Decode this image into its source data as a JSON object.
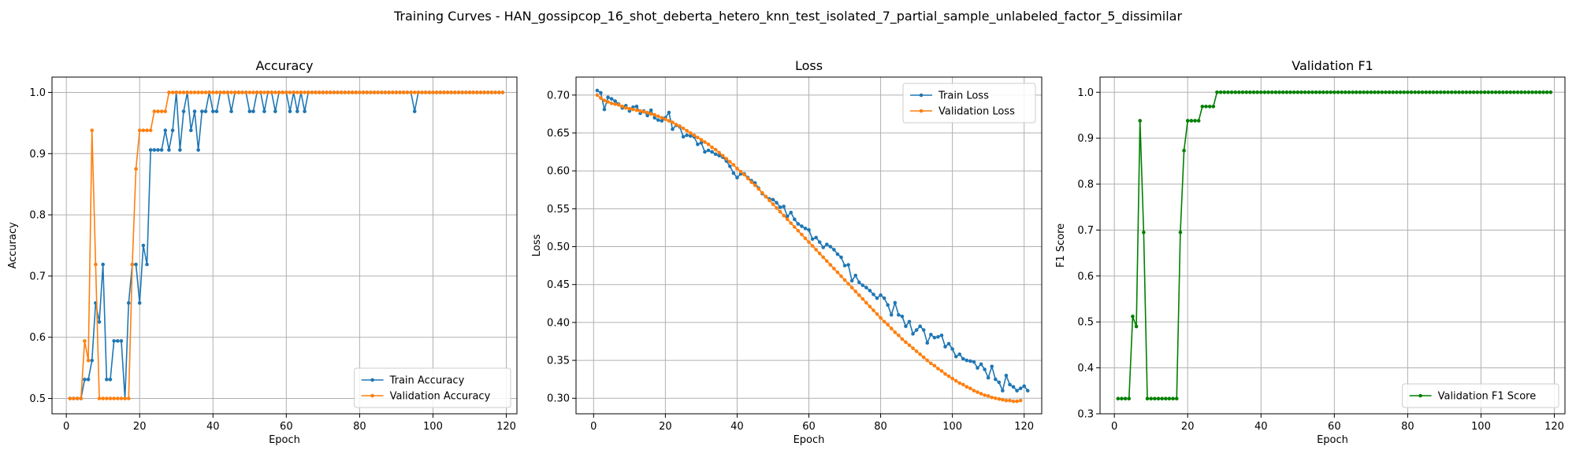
{
  "figure": {
    "title": "Training Curves - HAN_gossipcop_16_shot_deberta_hetero_knn_test_isolated_7_partial_sample_unlabeled_factor_5_dissimilar"
  },
  "colors": {
    "train": "#1f77b4",
    "validation": "#ff7f0e",
    "f1": "#008000",
    "grid": "#b0b0b0"
  },
  "chart_data": [
    {
      "type": "line",
      "title": "Accuracy",
      "xlabel": "Epoch",
      "ylabel": "Accuracy",
      "xlim": [
        -3.9,
        122.9
      ],
      "ylim": [
        0.475,
        1.025
      ],
      "xticks": [
        0,
        20,
        40,
        60,
        80,
        100,
        120
      ],
      "yticks": [
        0.5,
        0.6,
        0.7,
        0.8,
        0.9,
        1.0
      ],
      "ytick_labels": [
        "0.5",
        "0.6",
        "0.7",
        "0.8",
        "0.9",
        "1.0"
      ],
      "grid": true,
      "legend": "lower-right",
      "x_start": 1,
      "series": [
        {
          "name": "Train Accuracy",
          "color": "#1f77b4",
          "values": [
            0.5,
            0.5,
            0.5,
            0.5,
            0.531,
            0.531,
            0.562,
            0.656,
            0.625,
            0.719,
            0.531,
            0.531,
            0.594,
            0.594,
            0.594,
            0.5,
            0.656,
            0.719,
            0.719,
            0.656,
            0.75,
            0.719,
            0.906,
            0.906,
            0.906,
            0.906,
            0.938,
            0.906,
            0.938,
            1.0,
            0.906,
            0.969,
            1.0,
            0.938,
            0.969,
            0.906,
            0.969,
            0.969,
            1.0,
            0.969,
            0.969,
            1.0,
            1.0,
            1.0,
            0.969,
            1.0,
            1.0,
            1.0,
            1.0,
            0.969,
            0.969,
            1.0,
            1.0,
            0.969,
            1.0,
            1.0,
            0.969,
            1.0,
            1.0,
            1.0,
            0.969,
            1.0,
            0.969,
            1.0,
            0.969,
            1.0,
            1.0,
            1.0,
            1.0,
            1.0,
            1.0,
            1.0,
            1.0,
            1.0,
            1.0,
            1.0,
            1.0,
            1.0,
            1.0,
            1.0,
            1.0,
            1.0,
            1.0,
            1.0,
            1.0,
            1.0,
            1.0,
            1.0,
            1.0,
            1.0,
            1.0,
            1.0,
            1.0,
            1.0,
            0.969,
            1.0,
            1.0,
            1.0,
            1.0,
            1.0,
            1.0,
            1.0,
            1.0,
            1.0,
            1.0,
            1.0,
            1.0,
            1.0,
            1.0,
            1.0,
            1.0,
            1.0,
            1.0,
            1.0,
            1.0,
            1.0,
            1.0,
            1.0,
            1.0
          ]
        },
        {
          "name": "Validation Accuracy",
          "color": "#ff7f0e",
          "values": [
            0.5,
            0.5,
            0.5,
            0.5,
            0.594,
            0.562,
            0.938,
            0.719,
            0.5,
            0.5,
            0.5,
            0.5,
            0.5,
            0.5,
            0.5,
            0.5,
            0.5,
            0.719,
            0.875,
            0.938,
            0.938,
            0.938,
            0.938,
            0.969,
            0.969,
            0.969,
            0.969,
            1.0,
            1.0,
            1.0,
            1.0,
            1.0,
            1.0,
            1.0,
            1.0,
            1.0,
            1.0,
            1.0,
            1.0,
            1.0,
            1.0,
            1.0,
            1.0,
            1.0,
            1.0,
            1.0,
            1.0,
            1.0,
            1.0,
            1.0,
            1.0,
            1.0,
            1.0,
            1.0,
            1.0,
            1.0,
            1.0,
            1.0,
            1.0,
            1.0,
            1.0,
            1.0,
            1.0,
            1.0,
            1.0,
            1.0,
            1.0,
            1.0,
            1.0,
            1.0,
            1.0,
            1.0,
            1.0,
            1.0,
            1.0,
            1.0,
            1.0,
            1.0,
            1.0,
            1.0,
            1.0,
            1.0,
            1.0,
            1.0,
            1.0,
            1.0,
            1.0,
            1.0,
            1.0,
            1.0,
            1.0,
            1.0,
            1.0,
            1.0,
            1.0,
            1.0,
            1.0,
            1.0,
            1.0,
            1.0,
            1.0,
            1.0,
            1.0,
            1.0,
            1.0,
            1.0,
            1.0,
            1.0,
            1.0,
            1.0,
            1.0,
            1.0,
            1.0,
            1.0,
            1.0,
            1.0,
            1.0,
            1.0,
            1.0
          ]
        }
      ]
    },
    {
      "type": "line",
      "title": "Loss",
      "xlabel": "Epoch",
      "ylabel": "Loss",
      "xlim": [
        -4.9,
        124.9
      ],
      "ylim": [
        0.2795,
        0.7237
      ],
      "xticks": [
        0,
        20,
        40,
        60,
        80,
        100,
        120
      ],
      "yticks": [
        0.3,
        0.35,
        0.4,
        0.45,
        0.5,
        0.55,
        0.6,
        0.65,
        0.7
      ],
      "ytick_labels": [
        "0.30",
        "0.35",
        "0.40",
        "0.45",
        "0.50",
        "0.55",
        "0.60",
        "0.65",
        "0.70"
      ],
      "grid": true,
      "legend": "top-right",
      "x_start": 1,
      "series": [
        {
          "name": "Train Loss",
          "color": "#1f77b4",
          "values": [
            0.706,
            0.703,
            0.681,
            0.697,
            0.695,
            0.692,
            0.688,
            0.683,
            0.686,
            0.679,
            0.684,
            0.685,
            0.676,
            0.679,
            0.673,
            0.68,
            0.67,
            0.667,
            0.666,
            0.67,
            0.677,
            0.655,
            0.66,
            0.658,
            0.645,
            0.647,
            0.646,
            0.645,
            0.635,
            0.637,
            0.625,
            0.627,
            0.625,
            0.622,
            0.62,
            0.618,
            0.613,
            0.606,
            0.597,
            0.591,
            0.596,
            0.596,
            0.591,
            0.587,
            0.584,
            0.577,
            0.57,
            0.566,
            0.563,
            0.562,
            0.558,
            0.552,
            0.553,
            0.54,
            0.545,
            0.536,
            0.53,
            0.527,
            0.524,
            0.522,
            0.51,
            0.512,
            0.506,
            0.499,
            0.503,
            0.5,
            0.496,
            0.49,
            0.486,
            0.475,
            0.476,
            0.455,
            0.462,
            0.453,
            0.449,
            0.446,
            0.442,
            0.437,
            0.432,
            0.436,
            0.432,
            0.423,
            0.41,
            0.426,
            0.41,
            0.408,
            0.395,
            0.401,
            0.385,
            0.39,
            0.395,
            0.39,
            0.373,
            0.384,
            0.38,
            0.381,
            0.383,
            0.368,
            0.372,
            0.365,
            0.355,
            0.358,
            0.352,
            0.35,
            0.349,
            0.348,
            0.34,
            0.345,
            0.338,
            0.327,
            0.342,
            0.325,
            0.321,
            0.31,
            0.33,
            0.318,
            0.315,
            0.31,
            0.313,
            0.316,
            0.31
          ]
        },
        {
          "name": "Validation Loss",
          "color": "#ff7f0e",
          "values": [
            0.7,
            0.696,
            0.693,
            0.691,
            0.689,
            0.688,
            0.687,
            0.685,
            0.683,
            0.682,
            0.681,
            0.68,
            0.679,
            0.678,
            0.677,
            0.675,
            0.674,
            0.672,
            0.67,
            0.668,
            0.666,
            0.664,
            0.661,
            0.659,
            0.656,
            0.653,
            0.65,
            0.647,
            0.644,
            0.641,
            0.638,
            0.635,
            0.631,
            0.628,
            0.624,
            0.62,
            0.616,
            0.612,
            0.608,
            0.603,
            0.599,
            0.595,
            0.59,
            0.585,
            0.581,
            0.576,
            0.571,
            0.566,
            0.561,
            0.556,
            0.551,
            0.546,
            0.541,
            0.536,
            0.531,
            0.526,
            0.521,
            0.516,
            0.511,
            0.506,
            0.501,
            0.496,
            0.491,
            0.486,
            0.481,
            0.476,
            0.471,
            0.466,
            0.461,
            0.456,
            0.451,
            0.446,
            0.441,
            0.436,
            0.431,
            0.426,
            0.421,
            0.416,
            0.411,
            0.406,
            0.401,
            0.397,
            0.392,
            0.387,
            0.383,
            0.378,
            0.374,
            0.37,
            0.366,
            0.362,
            0.358,
            0.354,
            0.35,
            0.346,
            0.343,
            0.339,
            0.336,
            0.332,
            0.329,
            0.326,
            0.323,
            0.32,
            0.318,
            0.315,
            0.313,
            0.31,
            0.308,
            0.306,
            0.304,
            0.303,
            0.301,
            0.3,
            0.299,
            0.298,
            0.297,
            0.297,
            0.296,
            0.296,
            0.297
          ]
        }
      ]
    },
    {
      "type": "line",
      "title": "Validation F1",
      "xlabel": "Epoch",
      "ylabel": "F1 Score",
      "xlim": [
        -3.9,
        122.9
      ],
      "ylim": [
        0.3,
        1.033
      ],
      "xticks": [
        0,
        20,
        40,
        60,
        80,
        100,
        120
      ],
      "yticks": [
        0.3,
        0.4,
        0.5,
        0.6,
        0.7,
        0.8,
        0.9,
        1.0
      ],
      "ytick_labels": [
        "0.3",
        "0.4",
        "0.5",
        "0.6",
        "0.7",
        "0.8",
        "0.9",
        "1.0"
      ],
      "grid": true,
      "legend": "lower-right",
      "x_start": 1,
      "series": [
        {
          "name": "Validation F1 Score",
          "color": "#008000",
          "values": [
            0.333,
            0.333,
            0.333,
            0.333,
            0.512,
            0.49,
            0.938,
            0.695,
            0.333,
            0.333,
            0.333,
            0.333,
            0.333,
            0.333,
            0.333,
            0.333,
            0.333,
            0.695,
            0.873,
            0.938,
            0.938,
            0.938,
            0.938,
            0.969,
            0.969,
            0.969,
            0.969,
            1.0,
            1.0,
            1.0,
            1.0,
            1.0,
            1.0,
            1.0,
            1.0,
            1.0,
            1.0,
            1.0,
            1.0,
            1.0,
            1.0,
            1.0,
            1.0,
            1.0,
            1.0,
            1.0,
            1.0,
            1.0,
            1.0,
            1.0,
            1.0,
            1.0,
            1.0,
            1.0,
            1.0,
            1.0,
            1.0,
            1.0,
            1.0,
            1.0,
            1.0,
            1.0,
            1.0,
            1.0,
            1.0,
            1.0,
            1.0,
            1.0,
            1.0,
            1.0,
            1.0,
            1.0,
            1.0,
            1.0,
            1.0,
            1.0,
            1.0,
            1.0,
            1.0,
            1.0,
            1.0,
            1.0,
            1.0,
            1.0,
            1.0,
            1.0,
            1.0,
            1.0,
            1.0,
            1.0,
            1.0,
            1.0,
            1.0,
            1.0,
            1.0,
            1.0,
            1.0,
            1.0,
            1.0,
            1.0,
            1.0,
            1.0,
            1.0,
            1.0,
            1.0,
            1.0,
            1.0,
            1.0,
            1.0,
            1.0,
            1.0,
            1.0,
            1.0,
            1.0,
            1.0,
            1.0,
            1.0,
            1.0,
            1.0
          ]
        }
      ]
    }
  ]
}
